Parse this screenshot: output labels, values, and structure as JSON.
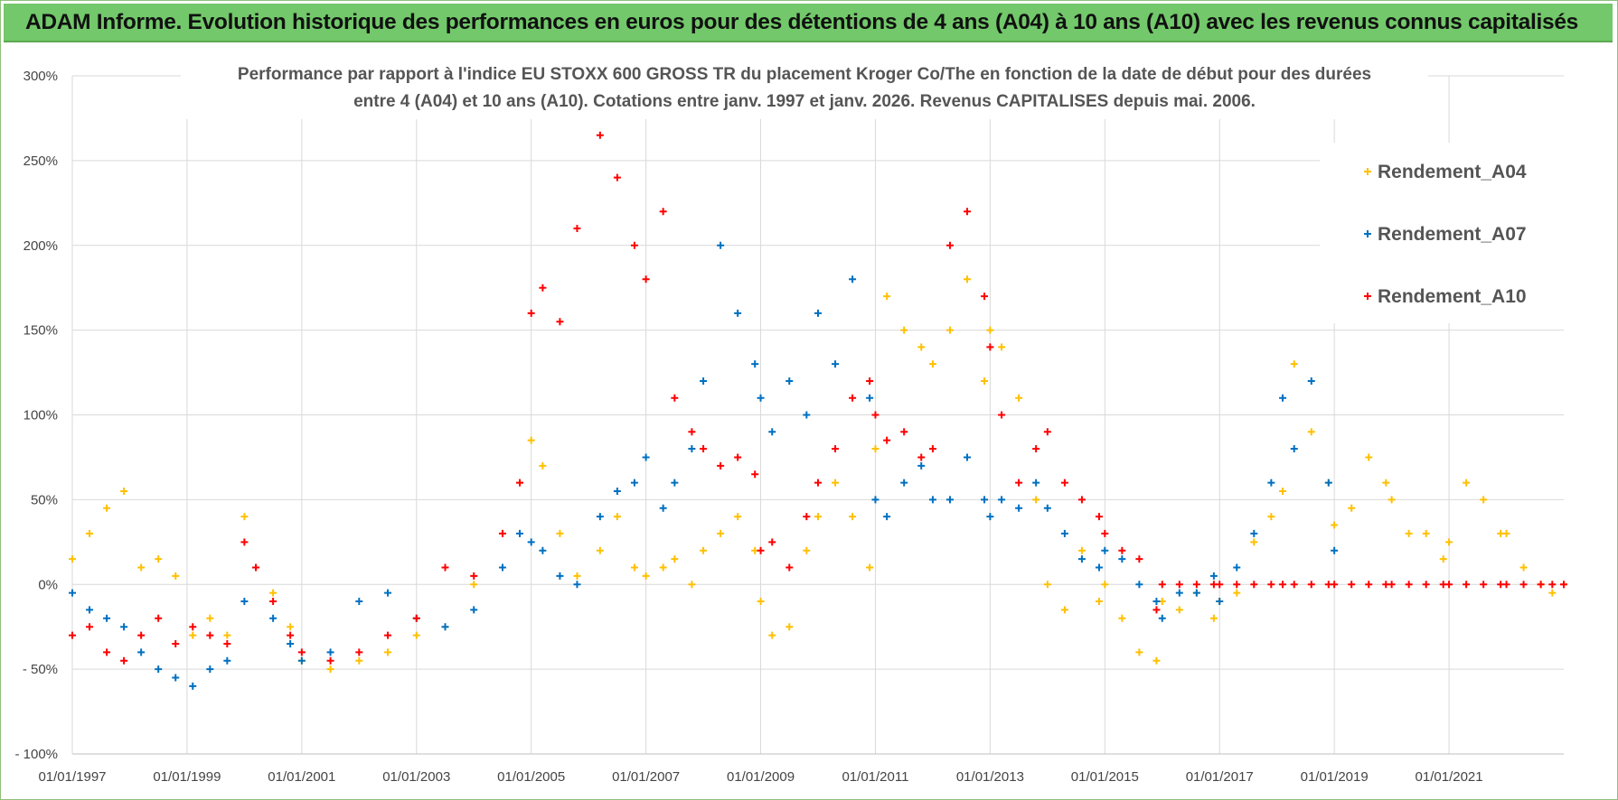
{
  "header": {
    "banner_text": "ADAM Informe. Evolution historique des performances en euros pour des détentions de 4 ans (A04) à 10 ans (A10) avec les revenus connus capitalisés"
  },
  "colors": {
    "banner_bg": "#72c86a",
    "A04": "#ffc000",
    "A07": "#0070c0",
    "A10": "#ff0000",
    "grid": "#d9d9d9"
  },
  "chart_data": {
    "type": "scatter",
    "title_line1": "Performance par rapport à l'indice EU STOXX 600 GROSS TR  du placement Kroger Co/The en fonction de la date de début pour des durées",
    "title_line2": "entre 4 (A04) et 10 ans (A10).  Cotations entre janv. 1997 et janv. 2026. Revenus CAPITALISES depuis mai. 2006.",
    "xlabel": "",
    "ylabel": "",
    "x_range": [
      1997.0,
      2023.0
    ],
    "ylim": [
      -100,
      300
    ],
    "grid": true,
    "legend_position": "top-right",
    "y_ticks": [
      300,
      250,
      200,
      150,
      100,
      50,
      0,
      -50,
      -100
    ],
    "y_tick_labels": [
      "300%",
      "250%",
      "200%",
      "150%",
      "100%",
      "50%",
      "0%",
      "- 50%",
      "- 100%"
    ],
    "x_tick_years": [
      1997,
      1999,
      2001,
      2003,
      2005,
      2007,
      2009,
      2011,
      2013,
      2015,
      2017,
      2019,
      2021
    ],
    "x_tick_labels": [
      "01/01/1997",
      "01/01/1999",
      "01/01/2001",
      "01/01/2003",
      "01/01/2005",
      "01/01/2007",
      "01/01/2009",
      "01/01/2011",
      "01/01/2013",
      "01/01/2015",
      "01/01/2017",
      "01/01/2019",
      "01/01/2021"
    ],
    "series": [
      {
        "name": "Rendement_A04",
        "color": "#ffc000",
        "x": [
          1997.0,
          1997.3,
          1997.6,
          1997.9,
          1998.2,
          1998.5,
          1998.8,
          1999.1,
          1999.4,
          1999.7,
          2000.0,
          2000.2,
          2000.5,
          2000.8,
          2001.0,
          2001.5,
          2002.0,
          2002.5,
          2003.0,
          2003.5,
          2004.0,
          2004.5,
          2004.8,
          2005.0,
          2005.2,
          2005.5,
          2005.8,
          2006.2,
          2006.5,
          2006.8,
          2007.0,
          2007.3,
          2007.5,
          2007.8,
          2008.0,
          2008.3,
          2008.6,
          2008.9,
          2009.0,
          2009.2,
          2009.5,
          2009.8,
          2010.0,
          2010.3,
          2010.6,
          2010.9,
          2011.0,
          2011.2,
          2011.5,
          2011.8,
          2012.0,
          2012.3,
          2012.6,
          2012.9,
          2013.0,
          2013.2,
          2013.5,
          2013.8,
          2014.0,
          2014.3,
          2014.6,
          2014.9,
          2015.0,
          2015.3,
          2015.6,
          2015.9,
          2016.0,
          2016.3,
          2016.6,
          2016.9,
          2017.0,
          2017.3,
          2017.6,
          2017.9,
          2018.1,
          2018.3,
          2018.6,
          2018.9,
          2019.0,
          2019.3,
          2019.6,
          2019.9,
          2020.0,
          2020.3,
          2020.6,
          2020.9,
          2021.0,
          2021.3,
          2021.6,
          2021.9,
          2022.0,
          2022.3,
          2022.6,
          2022.8,
          2023.0
        ],
        "values": [
          15,
          30,
          45,
          55,
          10,
          15,
          5,
          -30,
          -20,
          -30,
          40,
          10,
          -5,
          -25,
          -45,
          -50,
          -45,
          -40,
          -30,
          -25,
          0,
          30,
          60,
          85,
          70,
          30,
          5,
          20,
          40,
          10,
          5,
          10,
          15,
          0,
          20,
          30,
          40,
          20,
          -10,
          -30,
          -25,
          20,
          40,
          60,
          40,
          10,
          80,
          170,
          150,
          140,
          130,
          150,
          180,
          120,
          150,
          140,
          110,
          50,
          0,
          -15,
          20,
          -10,
          0,
          -20,
          -40,
          -45,
          -10,
          -15,
          -5,
          -20,
          -10,
          -5,
          25,
          40,
          55,
          130,
          90,
          60,
          35,
          45,
          75,
          60,
          50,
          30,
          30,
          15,
          25,
          60,
          50,
          30,
          30,
          10,
          0,
          -5,
          0
        ]
      },
      {
        "name": "Rendement_A07",
        "color": "#0070c0",
        "x": [
          1997.0,
          1997.3,
          1997.6,
          1997.9,
          1998.2,
          1998.5,
          1998.8,
          1999.1,
          1999.4,
          1999.7,
          2000.0,
          2000.2,
          2000.5,
          2000.8,
          2001.0,
          2001.5,
          2002.0,
          2002.5,
          2003.0,
          2003.5,
          2004.0,
          2004.5,
          2004.8,
          2005.0,
          2005.2,
          2005.5,
          2005.8,
          2006.2,
          2006.5,
          2006.8,
          2007.0,
          2007.3,
          2007.5,
          2007.8,
          2008.0,
          2008.3,
          2008.6,
          2008.9,
          2009.0,
          2009.2,
          2009.5,
          2009.8,
          2010.0,
          2010.3,
          2010.6,
          2010.9,
          2011.0,
          2011.2,
          2011.5,
          2011.8,
          2012.0,
          2012.3,
          2012.6,
          2012.9,
          2013.0,
          2013.2,
          2013.5,
          2013.8,
          2014.0,
          2014.3,
          2014.6,
          2014.9,
          2015.0,
          2015.3,
          2015.6,
          2015.9,
          2016.0,
          2016.3,
          2016.6,
          2016.9,
          2017.0,
          2017.3,
          2017.6,
          2017.9,
          2018.1,
          2018.3,
          2018.6,
          2018.9,
          2019.0
        ],
        "values": [
          -5,
          -15,
          -20,
          -25,
          -40,
          -50,
          -55,
          -60,
          -50,
          -45,
          -10,
          10,
          -20,
          -35,
          -45,
          -40,
          -10,
          -5,
          -20,
          -25,
          -15,
          10,
          30,
          25,
          20,
          5,
          0,
          40,
          55,
          60,
          75,
          45,
          60,
          80,
          120,
          200,
          160,
          130,
          110,
          90,
          120,
          100,
          160,
          130,
          180,
          110,
          50,
          40,
          60,
          70,
          50,
          50,
          75,
          50,
          40,
          50,
          45,
          60,
          45,
          30,
          15,
          10,
          20,
          15,
          0,
          -10,
          -20,
          -5,
          -5,
          5,
          -10,
          10,
          30,
          60,
          110,
          80,
          120,
          60,
          20
        ]
      },
      {
        "name": "Rendement_A10",
        "color": "#ff0000",
        "x": [
          1997.0,
          1997.3,
          1997.6,
          1997.9,
          1998.2,
          1998.5,
          1998.8,
          1999.1,
          1999.4,
          1999.7,
          2000.0,
          2000.2,
          2000.5,
          2000.8,
          2001.0,
          2001.5,
          2002.0,
          2002.5,
          2003.0,
          2003.5,
          2004.0,
          2004.5,
          2004.8,
          2005.0,
          2005.2,
          2005.5,
          2005.8,
          2006.2,
          2006.5,
          2006.8,
          2007.0,
          2007.3,
          2007.5,
          2007.8,
          2008.0,
          2008.3,
          2008.6,
          2008.9,
          2009.0,
          2009.2,
          2009.5,
          2009.8,
          2010.0,
          2010.3,
          2010.6,
          2010.9,
          2011.0,
          2011.2,
          2011.5,
          2011.8,
          2012.0,
          2012.3,
          2012.6,
          2012.9,
          2013.0,
          2013.2,
          2013.5,
          2013.8,
          2014.0,
          2014.3,
          2014.6,
          2014.9,
          2015.0,
          2015.3,
          2015.6,
          2015.9,
          2016.0,
          2016.3,
          2016.6,
          2016.9,
          2017.0,
          2017.3,
          2017.6,
          2017.9,
          2018.1,
          2018.3,
          2018.6,
          2018.9,
          2019.0,
          2019.3,
          2019.6,
          2019.9,
          2020.0,
          2020.3,
          2020.6,
          2020.9,
          2021.0,
          2021.3,
          2021.6,
          2021.9,
          2022.0,
          2022.3,
          2022.6,
          2022.8,
          2023.0
        ],
        "values": [
          -30,
          -25,
          -40,
          -45,
          -30,
          -20,
          -35,
          -25,
          -30,
          -35,
          25,
          10,
          -10,
          -30,
          -40,
          -45,
          -40,
          -30,
          -20,
          10,
          5,
          30,
          60,
          160,
          175,
          155,
          210,
          265,
          240,
          200,
          180,
          220,
          110,
          90,
          80,
          70,
          75,
          65,
          20,
          25,
          10,
          40,
          60,
          80,
          110,
          120,
          100,
          85,
          90,
          75,
          80,
          200,
          220,
          170,
          140,
          100,
          60,
          80,
          90,
          60,
          50,
          40,
          30,
          20,
          15,
          -15,
          0,
          0,
          0,
          0,
          0,
          0,
          0,
          0,
          0,
          0,
          0,
          0,
          0,
          0,
          0,
          0,
          0,
          0,
          0,
          0,
          0,
          0,
          0,
          0,
          0,
          0,
          0,
          0,
          0
        ]
      }
    ]
  }
}
